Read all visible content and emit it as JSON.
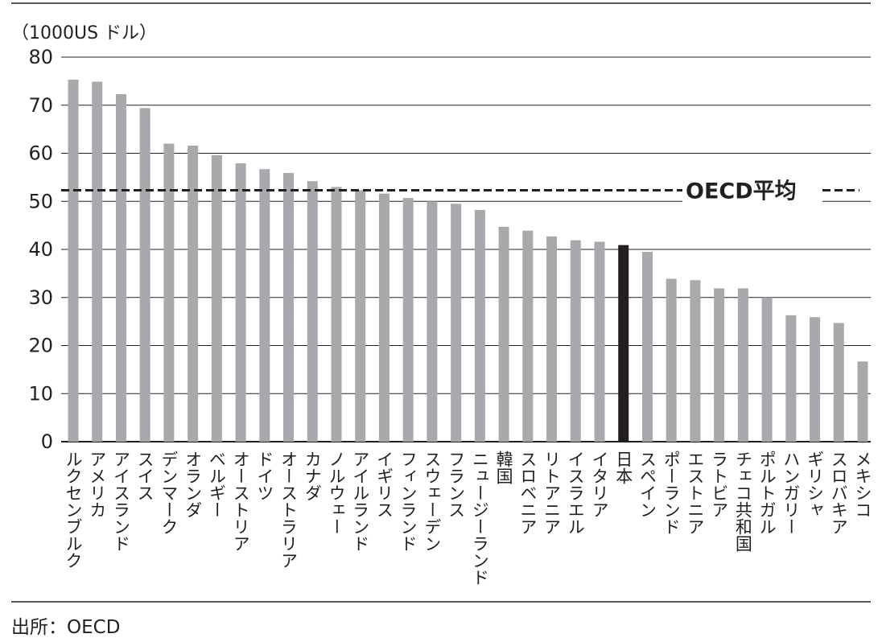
{
  "unit_label": "（1000US ドル）",
  "source": "出所：OECD",
  "colors": {
    "bar": "#a7a9ac",
    "highlight": "#231f20",
    "text": "#231f20",
    "grid": "#231f20"
  },
  "chart_data": {
    "type": "bar",
    "ylabel": "（1000US ドル）",
    "ylim": [
      0,
      80
    ],
    "yticks": [
      0,
      10,
      20,
      30,
      40,
      50,
      60,
      70,
      80
    ],
    "grid": true,
    "categories": [
      "ルクセンブルク",
      "アメリカ",
      "アイスランド",
      "スイス",
      "デンマーク",
      "オランダ",
      "ベルギー",
      "オーストリア",
      "ドイツ",
      "オーストラリア",
      "カナダ",
      "ノルウェー",
      "アイルランド",
      "イギリス",
      "フィンランド",
      "スウェーデン",
      "フランス",
      "ニュージーランド",
      "韓国",
      "スロベニア",
      "リトアニア",
      "イスラエル",
      "イタリア",
      "日本",
      "スペイン",
      "ポーランド",
      "エストニア",
      "ラトビア",
      "チェコ共和国",
      "ポルトガル",
      "ハンガリー",
      "ギリシャ",
      "スロバキア",
      "メキシコ"
    ],
    "values": [
      75.3,
      74.9,
      72.3,
      69.4,
      62.0,
      61.6,
      59.6,
      57.9,
      56.7,
      55.9,
      54.2,
      53.0,
      52.3,
      51.6,
      50.7,
      50.0,
      49.5,
      48.2,
      44.7,
      43.9,
      42.7,
      41.9,
      41.6,
      40.9,
      39.5,
      33.9,
      33.6,
      31.9,
      31.9,
      30.0,
      26.3,
      25.9,
      24.7,
      16.7
    ],
    "highlight": "日本",
    "reference_lines": [
      {
        "label": "OECD平均",
        "value": 52.3,
        "style": "dashed"
      }
    ]
  }
}
